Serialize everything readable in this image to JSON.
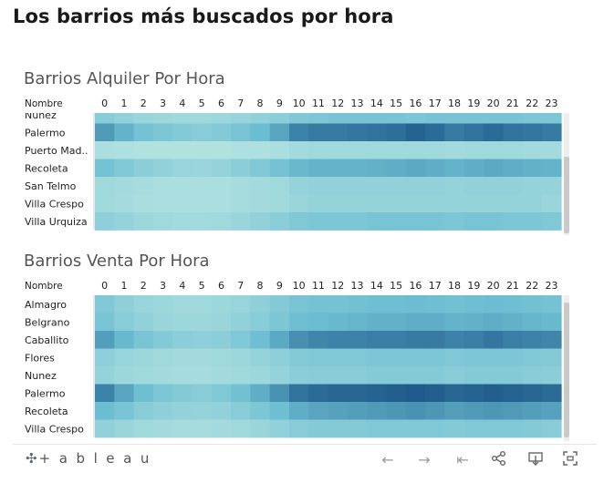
{
  "page": {
    "title": "Los barrios más buscados por hora"
  },
  "colors": {
    "low": "#c3ebe4",
    "mid": "#6bbdd1",
    "high": "#1f5b8c",
    "text": "#222222"
  },
  "chart_data": [
    {
      "type": "heatmap",
      "title": "Barrios Alquiler Por Hora",
      "row_header": "Nombre",
      "x": [
        0,
        1,
        2,
        3,
        4,
        5,
        6,
        7,
        8,
        9,
        10,
        11,
        12,
        13,
        14,
        15,
        16,
        17,
        18,
        19,
        20,
        21,
        22,
        23
      ],
      "rows": [
        "Nunez",
        "Palermo",
        "Puerto Mad..",
        "Recoleta",
        "San Telmo",
        "Villa Crespo",
        "Villa Urquiza"
      ],
      "values": [
        [
          0.34,
          0.28,
          0.24,
          0.22,
          0.2,
          0.2,
          0.22,
          0.25,
          0.28,
          0.32,
          0.38,
          0.4,
          0.42,
          0.42,
          0.42,
          0.42,
          0.4,
          0.42,
          0.42,
          0.42,
          0.42,
          0.42,
          0.4,
          0.4
        ],
        [
          0.68,
          0.55,
          0.45,
          0.4,
          0.36,
          0.34,
          0.36,
          0.42,
          0.5,
          0.62,
          0.8,
          0.84,
          0.84,
          0.86,
          0.88,
          0.9,
          0.96,
          0.92,
          0.84,
          0.88,
          0.92,
          0.88,
          0.86,
          0.84
        ],
        [
          0.14,
          0.12,
          0.1,
          0.1,
          0.1,
          0.1,
          0.1,
          0.12,
          0.12,
          0.14,
          0.18,
          0.2,
          0.2,
          0.2,
          0.2,
          0.2,
          0.2,
          0.2,
          0.18,
          0.2,
          0.2,
          0.2,
          0.18,
          0.18
        ],
        [
          0.45,
          0.38,
          0.32,
          0.28,
          0.25,
          0.24,
          0.26,
          0.32,
          0.38,
          0.45,
          0.52,
          0.55,
          0.55,
          0.55,
          0.56,
          0.58,
          0.6,
          0.58,
          0.55,
          0.58,
          0.6,
          0.58,
          0.56,
          0.55
        ],
        [
          0.2,
          0.18,
          0.16,
          0.14,
          0.14,
          0.14,
          0.14,
          0.16,
          0.18,
          0.2,
          0.26,
          0.28,
          0.28,
          0.28,
          0.28,
          0.28,
          0.28,
          0.28,
          0.26,
          0.28,
          0.28,
          0.28,
          0.26,
          0.26
        ],
        [
          0.2,
          0.17,
          0.15,
          0.14,
          0.14,
          0.14,
          0.14,
          0.16,
          0.18,
          0.2,
          0.24,
          0.26,
          0.26,
          0.26,
          0.26,
          0.26,
          0.26,
          0.26,
          0.26,
          0.26,
          0.26,
          0.26,
          0.26,
          0.24
        ],
        [
          0.3,
          0.26,
          0.22,
          0.2,
          0.18,
          0.18,
          0.2,
          0.24,
          0.28,
          0.32,
          0.38,
          0.4,
          0.4,
          0.4,
          0.42,
          0.42,
          0.42,
          0.42,
          0.4,
          0.42,
          0.42,
          0.4,
          0.4,
          0.38
        ]
      ]
    },
    {
      "type": "heatmap",
      "title": "Barrios Venta Por Hora",
      "row_header": "Nombre",
      "x": [
        0,
        1,
        2,
        3,
        4,
        5,
        6,
        7,
        8,
        9,
        10,
        11,
        12,
        13,
        14,
        15,
        16,
        17,
        18,
        19,
        20,
        21,
        22,
        23
      ],
      "rows": [
        "Almagro",
        "Belgrano",
        "Caballito",
        "Flores",
        "Nunez",
        "Palermo",
        "Recoleta",
        "Villa Crespo"
      ],
      "values": [
        [
          0.38,
          0.3,
          0.25,
          0.22,
          0.2,
          0.2,
          0.22,
          0.25,
          0.3,
          0.36,
          0.42,
          0.45,
          0.45,
          0.46,
          0.48,
          0.48,
          0.5,
          0.48,
          0.46,
          0.48,
          0.5,
          0.48,
          0.46,
          0.45
        ],
        [
          0.42,
          0.34,
          0.28,
          0.24,
          0.22,
          0.22,
          0.24,
          0.28,
          0.34,
          0.4,
          0.48,
          0.5,
          0.52,
          0.54,
          0.56,
          0.56,
          0.58,
          0.58,
          0.55,
          0.56,
          0.58,
          0.56,
          0.54,
          0.52
        ],
        [
          0.66,
          0.52,
          0.42,
          0.36,
          0.32,
          0.3,
          0.32,
          0.38,
          0.48,
          0.6,
          0.74,
          0.78,
          0.8,
          0.8,
          0.82,
          0.82,
          0.84,
          0.84,
          0.8,
          0.82,
          0.86,
          0.82,
          0.8,
          0.78
        ],
        [
          0.3,
          0.25,
          0.22,
          0.2,
          0.18,
          0.18,
          0.2,
          0.22,
          0.26,
          0.3,
          0.36,
          0.38,
          0.38,
          0.38,
          0.4,
          0.4,
          0.4,
          0.4,
          0.38,
          0.4,
          0.4,
          0.4,
          0.38,
          0.36
        ],
        [
          0.26,
          0.22,
          0.2,
          0.18,
          0.16,
          0.16,
          0.18,
          0.2,
          0.22,
          0.26,
          0.32,
          0.34,
          0.34,
          0.34,
          0.36,
          0.36,
          0.36,
          0.36,
          0.34,
          0.36,
          0.36,
          0.36,
          0.34,
          0.32
        ],
        [
          0.8,
          0.62,
          0.48,
          0.4,
          0.36,
          0.34,
          0.38,
          0.46,
          0.58,
          0.72,
          0.88,
          0.92,
          0.94,
          0.94,
          0.96,
          0.98,
          1.0,
          0.98,
          0.94,
          0.96,
          0.98,
          0.96,
          0.94,
          0.92
        ],
        [
          0.5,
          0.42,
          0.34,
          0.3,
          0.27,
          0.26,
          0.28,
          0.34,
          0.4,
          0.48,
          0.58,
          0.62,
          0.64,
          0.66,
          0.68,
          0.7,
          0.72,
          0.7,
          0.66,
          0.68,
          0.7,
          0.68,
          0.66,
          0.64
        ],
        [
          0.28,
          0.24,
          0.2,
          0.18,
          0.16,
          0.16,
          0.18,
          0.2,
          0.24,
          0.28,
          0.34,
          0.36,
          0.36,
          0.36,
          0.38,
          0.38,
          0.38,
          0.38,
          0.36,
          0.38,
          0.38,
          0.38,
          0.36,
          0.34
        ]
      ]
    }
  ],
  "footer": {
    "logo_text": "+ a b l e a u",
    "icons": [
      "undo-icon",
      "redo-icon",
      "revert-icon",
      "share-icon",
      "download-icon",
      "fullscreen-icon"
    ]
  }
}
